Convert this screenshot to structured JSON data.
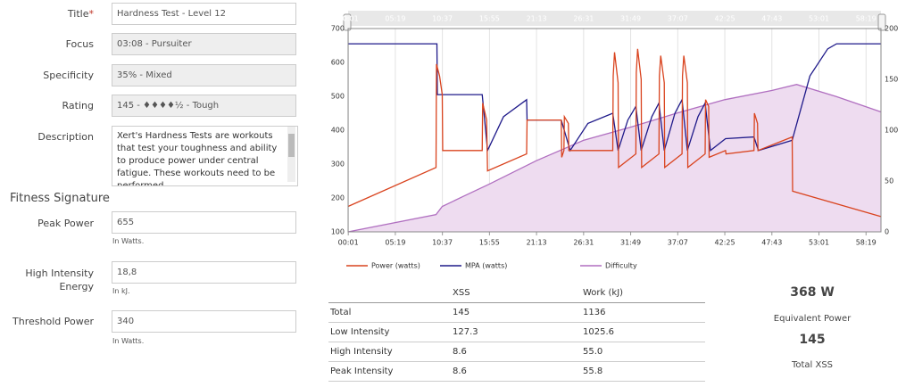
{
  "form": {
    "title_label": "Title",
    "required_mark": "*",
    "title_value": "Hardness Test - Level 12",
    "focus_label": "Focus",
    "focus_value": "03:08 - Pursuiter",
    "specificity_label": "Specificity",
    "specificity_value": "35% - Mixed",
    "rating_label": "Rating",
    "rating_value": "145 - ♦♦♦♦½ - Tough",
    "description_label": "Description",
    "description_value": "Xert's Hardness Tests are workouts that test your toughness and ability to produce power under central fatigue. These workouts need to be performed"
  },
  "fitness": {
    "heading": "Fitness Signature",
    "peak_power_label": "Peak Power",
    "peak_power_value": "655",
    "peak_power_hint": "In Watts.",
    "hie_label": "High Intensity Energy",
    "hie_value": "18,8",
    "hie_hint": "In kJ.",
    "threshold_label": "Threshold Power",
    "threshold_value": "340",
    "threshold_hint": "In Watts."
  },
  "chart_data": {
    "type": "line",
    "xlim": [
      0,
      60
    ],
    "ylim": [
      100,
      700
    ],
    "y2lim": [
      0,
      200
    ],
    "xticks": [
      {
        "value": 0.017,
        "label": "00:01"
      },
      {
        "value": 5.317,
        "label": "05:19"
      },
      {
        "value": 10.617,
        "label": "10:37"
      },
      {
        "value": 15.917,
        "label": "15:55"
      },
      {
        "value": 21.217,
        "label": "21:13"
      },
      {
        "value": 26.517,
        "label": "26:31"
      },
      {
        "value": 31.817,
        "label": "31:49"
      },
      {
        "value": 37.117,
        "label": "37:07"
      },
      {
        "value": 42.417,
        "label": "42:25"
      },
      {
        "value": 47.717,
        "label": "47:43"
      },
      {
        "value": 53.017,
        "label": "53:01"
      },
      {
        "value": 58.317,
        "label": "58:19"
      }
    ],
    "yticks": [
      100,
      200,
      300,
      400,
      500,
      600,
      700
    ],
    "y2ticks": [
      0,
      50,
      100,
      150,
      200
    ],
    "grid": "x",
    "series": [
      {
        "name": "Power (watts)",
        "color": "#d9431e",
        "x": [
          0,
          9.9,
          9.95,
          10.3,
          10.6,
          10.65,
          15.1,
          15.15,
          15.6,
          15.7,
          20.1,
          20.15,
          24.0,
          24.05,
          24.3,
          24.35,
          24.8,
          24.85,
          29.8,
          29.85,
          30.0,
          30.4,
          30.45,
          32.4,
          32.45,
          32.6,
          33.0,
          33.05,
          35.0,
          35.05,
          35.2,
          35.6,
          35.65,
          37.6,
          37.65,
          37.8,
          38.2,
          38.25,
          40.2,
          40.25,
          40.6,
          40.65,
          42.5,
          42.55,
          45.7,
          45.75,
          46.1,
          46.15,
          50.0,
          50.05,
          60
        ],
        "values": [
          175,
          290,
          595,
          560,
          505,
          340,
          340,
          480,
          430,
          280,
          330,
          430,
          430,
          320,
          340,
          440,
          420,
          340,
          340,
          560,
          630,
          540,
          290,
          330,
          570,
          640,
          550,
          290,
          330,
          560,
          620,
          540,
          290,
          330,
          560,
          620,
          540,
          290,
          330,
          490,
          470,
          320,
          340,
          330,
          340,
          450,
          420,
          340,
          380,
          220,
          145
        ]
      },
      {
        "name": "MPA (watts)",
        "color": "#1f1a8a",
        "x": [
          0,
          10.0,
          10.05,
          15.1,
          15.7,
          17.5,
          20.1,
          20.15,
          24.0,
          25.0,
          27.0,
          29.8,
          30.4,
          31.5,
          32.4,
          33.0,
          34.2,
          35.0,
          35.6,
          36.8,
          37.6,
          38.2,
          39.4,
          40.2,
          40.8,
          42.5,
          45.7,
          46.2,
          50.0,
          52.0,
          54.0,
          55.0,
          60
        ],
        "values": [
          655,
          655,
          505,
          505,
          340,
          440,
          490,
          430,
          430,
          340,
          420,
          450,
          340,
          430,
          470,
          340,
          440,
          480,
          340,
          450,
          490,
          340,
          440,
          480,
          340,
          375,
          380,
          340,
          370,
          560,
          640,
          655,
          655
        ]
      },
      {
        "name": "Difficulty",
        "color": "#b06fc0",
        "axis": "y2",
        "area": "#eedcf0",
        "x": [
          0,
          9.9,
          10.6,
          13,
          15.9,
          21.2,
          26.5,
          31.8,
          37.1,
          42.4,
          47.7,
          50.5,
          55,
          60
        ],
        "values": [
          0,
          17,
          25,
          35,
          47,
          70,
          90,
          103,
          117,
          130,
          139,
          145,
          133,
          118
        ]
      }
    ]
  },
  "table": {
    "header": [
      "XSS",
      "Work (kJ)"
    ],
    "rows": [
      [
        "Total",
        "145",
        "1136"
      ],
      [
        "Low Intensity",
        "127.3",
        "1025.6"
      ],
      [
        "High Intensity",
        "8.6",
        "55.0"
      ],
      [
        "Peak Intensity",
        "8.6",
        "55.8"
      ]
    ]
  },
  "summary": {
    "equivalent_power_value": "368 W",
    "equivalent_power_label": "Equivalent Power",
    "total_xss_value": "145",
    "total_xss_label": "Total XSS"
  }
}
